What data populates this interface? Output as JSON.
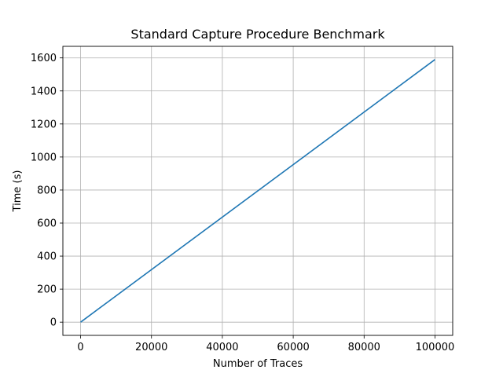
{
  "chart_data": {
    "type": "line",
    "title": "Standard Capture Procedure Benchmark",
    "xlabel": "Number of Traces",
    "ylabel": "Time (s)",
    "xlim": [
      -5000,
      105000
    ],
    "ylim": [
      -80,
      1670
    ],
    "x_ticks": [
      0,
      20000,
      40000,
      60000,
      80000,
      100000
    ],
    "y_ticks": [
      0,
      200,
      400,
      600,
      800,
      1000,
      1200,
      1400,
      1600
    ],
    "grid": true,
    "series": [
      {
        "color": "#1f77b4",
        "x": [
          0,
          100000
        ],
        "y": [
          0,
          1590
        ]
      }
    ]
  }
}
